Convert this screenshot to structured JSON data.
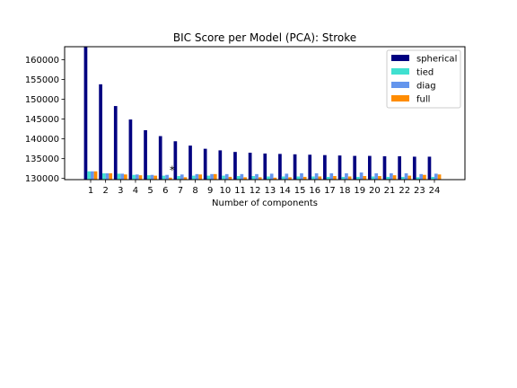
{
  "chart_data": {
    "type": "bar",
    "title": "BIC Score per Model (PCA): Stroke",
    "xlabel": "Number of components",
    "ylabel": "",
    "ylim": [
      129700,
      163300
    ],
    "categories": [
      "1",
      "2",
      "3",
      "4",
      "5",
      "6",
      "7",
      "8",
      "9",
      "10",
      "11",
      "12",
      "13",
      "14",
      "15",
      "16",
      "17",
      "18",
      "19",
      "20",
      "21",
      "22",
      "23",
      "24"
    ],
    "yticks": [
      {
        "value": 130000,
        "label": "130000"
      },
      {
        "value": 135000,
        "label": "135000"
      },
      {
        "value": 140000,
        "label": "140000"
      },
      {
        "value": 145000,
        "label": "145000"
      },
      {
        "value": 150000,
        "label": "150000"
      },
      {
        "value": 155000,
        "label": "155000"
      },
      {
        "value": 160000,
        "label": "160000"
      }
    ],
    "legend_position": "top-right",
    "series": [
      {
        "name": "spherical",
        "color": "#000080",
        "values": [
          163500,
          153800,
          148300,
          144900,
          142200,
          140700,
          139400,
          138300,
          137500,
          137100,
          136700,
          136500,
          136300,
          136200,
          136100,
          136000,
          135900,
          135800,
          135700,
          135700,
          135600,
          135600,
          135500,
          135500
        ]
      },
      {
        "name": "tied",
        "color": "#40e0d0",
        "values": [
          131800,
          131300,
          131200,
          130900,
          130800,
          130700,
          130600,
          130700,
          130700,
          130700,
          130600,
          130600,
          130500,
          130500,
          130500,
          130500,
          130400,
          130400,
          130400,
          130500,
          130400,
          130400,
          130300,
          130400
        ]
      },
      {
        "name": "diag",
        "color": "#6495ed",
        "values": [
          131800,
          131300,
          131200,
          131000,
          130900,
          130900,
          131000,
          131100,
          131100,
          131100,
          131100,
          131100,
          131200,
          131200,
          131300,
          131300,
          131300,
          131300,
          131500,
          131300,
          131300,
          131300,
          131100,
          131200
        ]
      },
      {
        "name": "full",
        "color": "#ff8c00",
        "values": [
          131800,
          131300,
          131000,
          130800,
          130700,
          130200,
          130300,
          131000,
          131100,
          130400,
          130300,
          130300,
          130200,
          130300,
          130400,
          130500,
          130600,
          130500,
          130600,
          130600,
          130800,
          130700,
          130900,
          131000
        ]
      }
    ],
    "annotations": [
      {
        "text": "*",
        "category": "7",
        "value": 131400
      }
    ]
  }
}
